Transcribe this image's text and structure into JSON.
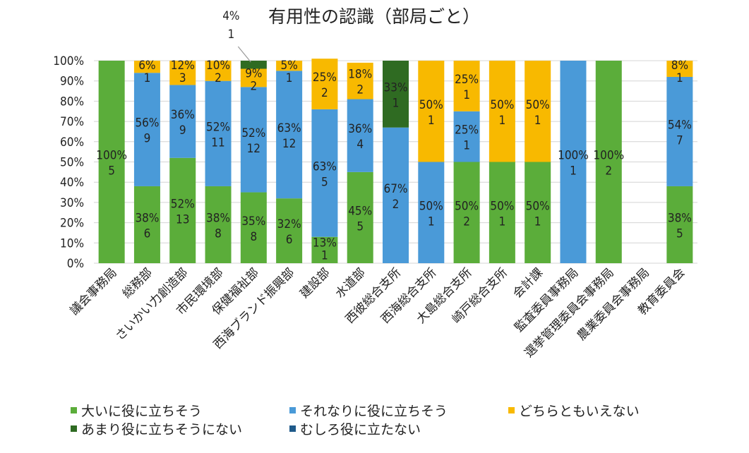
{
  "chart_data": {
    "type": "stacked-bar-100",
    "title": "有用性の認識（部局ごと）",
    "ylim": [
      0,
      100
    ],
    "yticks": [
      "0%",
      "10%",
      "20%",
      "30%",
      "40%",
      "50%",
      "60%",
      "70%",
      "80%",
      "90%",
      "100%"
    ],
    "categories": [
      "議会事務局",
      "総務部",
      "さいかい力創造部",
      "市民環境部",
      "保健福祉部",
      "西海ブランド振興部",
      "建設部",
      "水道部",
      "西彼総合支所",
      "西海総合支所",
      "大島総合支所",
      "崎戸総合支所",
      "会計課",
      "監査委員事務局",
      "選挙管理委員会事務局",
      "農業委員会事務局",
      "教育委員会"
    ],
    "series": [
      {
        "name": "大いに役に立ちそう",
        "color": "#5bad3a",
        "percents": [
          100,
          38,
          52,
          38,
          35,
          32,
          13,
          45,
          0,
          0,
          50,
          50,
          50,
          0,
          100,
          0,
          38
        ],
        "counts": [
          5,
          6,
          13,
          8,
          8,
          6,
          1,
          5,
          0,
          0,
          2,
          1,
          1,
          0,
          2,
          0,
          5
        ]
      },
      {
        "name": "それなりに役に立ちそう",
        "color": "#4a9ad8",
        "percents": [
          0,
          56,
          36,
          52,
          52,
          63,
          63,
          36,
          67,
          50,
          25,
          0,
          0,
          100,
          0,
          0,
          54
        ],
        "counts": [
          0,
          9,
          9,
          11,
          12,
          12,
          5,
          4,
          2,
          1,
          1,
          0,
          0,
          1,
          0,
          0,
          7
        ]
      },
      {
        "name": "どちらともいえない",
        "color": "#f8b900",
        "percents": [
          0,
          6,
          12,
          10,
          9,
          5,
          25,
          18,
          0,
          50,
          25,
          50,
          50,
          0,
          0,
          0,
          8
        ],
        "counts": [
          0,
          1,
          3,
          2,
          2,
          1,
          2,
          2,
          0,
          1,
          1,
          1,
          1,
          0,
          0,
          0,
          1
        ]
      },
      {
        "name": "あまり役に立ちそうにない",
        "color": "#2f6b22",
        "percents": [
          0,
          0,
          0,
          0,
          4,
          0,
          0,
          0,
          33,
          0,
          0,
          0,
          0,
          0,
          0,
          0,
          0
        ],
        "counts": [
          0,
          0,
          0,
          0,
          1,
          0,
          0,
          0,
          1,
          0,
          0,
          0,
          0,
          0,
          0,
          0,
          0
        ]
      },
      {
        "name": "むしろ役に立たない",
        "color": "#1f5a8a",
        "percents": [
          0,
          0,
          0,
          0,
          0,
          0,
          0,
          0,
          0,
          0,
          0,
          0,
          0,
          0,
          0,
          0,
          0
        ],
        "counts": [
          0,
          0,
          0,
          0,
          0,
          0,
          0,
          0,
          0,
          0,
          0,
          0,
          0,
          0,
          0,
          0,
          0
        ]
      }
    ],
    "callout": {
      "category": "保健福祉部",
      "series": "あまり役に立ちそうにない",
      "percent_label": "4%",
      "count_label": "1"
    },
    "legend_position": "bottom"
  }
}
